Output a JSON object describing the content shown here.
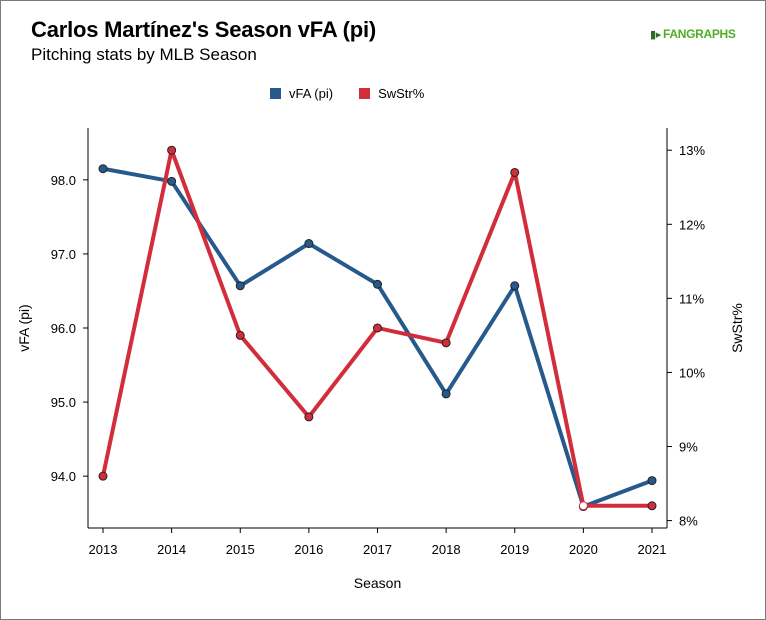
{
  "header": {
    "title": "Carlos Martínez's Season vFA (pi)",
    "subtitle": "Pitching stats by MLB Season",
    "logo_text": "FANGRAPHS"
  },
  "colors": {
    "vfa": "#265a8c",
    "swstr": "#d22d3a",
    "logo": "#50ae26"
  },
  "chart_data": {
    "type": "line",
    "x": [
      2013,
      2014,
      2015,
      2016,
      2017,
      2018,
      2019,
      2020,
      2021
    ],
    "xlabel": "Season",
    "ylabel": "vFA (pi)",
    "y2label": "SwStr%",
    "ylim": [
      93.3,
      98.7
    ],
    "y2lim": [
      7.9,
      13.3
    ],
    "yticks": [
      "94.0",
      "95.0",
      "96.0",
      "97.0",
      "98.0"
    ],
    "y2ticks": [
      "8%",
      "9%",
      "10%",
      "11%",
      "12%",
      "13%"
    ],
    "series": [
      {
        "name": "vFA (pi)",
        "axis": "left",
        "values": [
          98.15,
          97.98,
          96.57,
          97.14,
          96.59,
          95.11,
          96.57,
          93.59,
          93.94
        ]
      },
      {
        "name": "SwStr%",
        "axis": "right",
        "values": [
          8.6,
          13.0,
          10.5,
          9.4,
          10.6,
          10.4,
          12.7,
          8.2,
          8.2
        ]
      }
    ]
  }
}
